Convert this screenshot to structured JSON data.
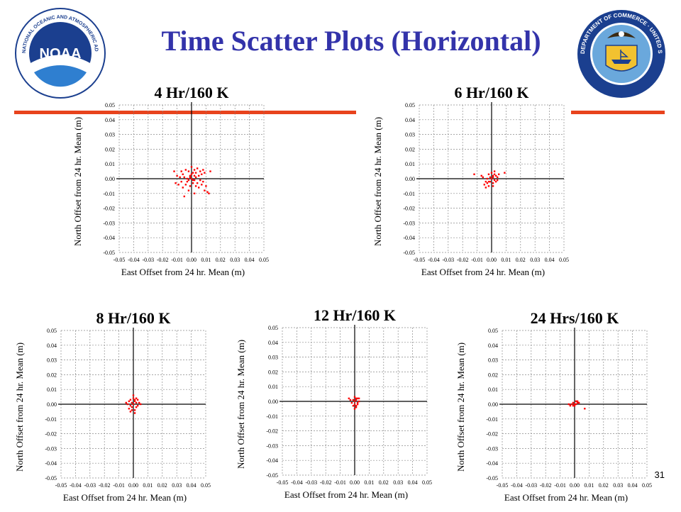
{
  "slide": {
    "title": "Time Scatter Plots (Horizontal)",
    "page_number": "31",
    "accent_color": "#e8431d",
    "title_color": "#3333aa"
  },
  "logos": {
    "left_icon": "noaa-logo-icon",
    "left_text": "NOAA",
    "left_ring_text": "NATIONAL OCEANIC AND ATMOSPHERIC ADMINISTRATION · U.S. DEPARTMENT OF COMMERCE",
    "right_icon": "department-of-commerce-seal-icon",
    "right_ring_text": "DEPARTMENT OF COMMERCE · UNITED STATES OF AMERICA"
  },
  "chart_data": [
    {
      "type": "scatter",
      "title": "4 Hr/160 K",
      "xlabel": "East Offset from 24 hr. Mean (m)",
      "ylabel": "North Offset from 24 hr. Mean (m)",
      "xlim": [
        -0.05,
        0.05
      ],
      "ylim": [
        -0.05,
        0.05
      ],
      "x_ticks": [
        "-0.05",
        "-0.04",
        "-0.03",
        "-0.02",
        "-0.01",
        "0.00",
        "0.01",
        "0.02",
        "0.03",
        "0.04",
        "0.05"
      ],
      "y_ticks": [
        "0.05",
        "0.04",
        "0.03",
        "0.02",
        "0.01",
        "0.00",
        "-0.01",
        "-0.02",
        "-0.03",
        "-0.04",
        "-0.05"
      ],
      "grid": true,
      "point_color": "#ff0000",
      "points": [
        [
          0.0,
          0.0
        ],
        [
          -0.001,
          0.002
        ],
        [
          0.002,
          -0.001
        ],
        [
          0.003,
          0.001
        ],
        [
          -0.003,
          -0.002
        ],
        [
          0.001,
          0.004
        ],
        [
          -0.002,
          0.005
        ],
        [
          0.004,
          -0.003
        ],
        [
          -0.005,
          0.001
        ],
        [
          0.005,
          0.002
        ],
        [
          -0.004,
          -0.004
        ],
        [
          0.006,
          -0.001
        ],
        [
          -0.006,
          0.003
        ],
        [
          0.002,
          0.006
        ],
        [
          -0.001,
          -0.005
        ],
        [
          0.003,
          -0.005
        ],
        [
          -0.007,
          -0.002
        ],
        [
          0.007,
          0.003
        ],
        [
          -0.008,
          0.001
        ],
        [
          0.008,
          -0.002
        ],
        [
          0.0,
          0.008
        ],
        [
          -0.002,
          -0.008
        ],
        [
          0.009,
          0.004
        ],
        [
          -0.009,
          -0.004
        ],
        [
          0.01,
          -0.005
        ],
        [
          -0.01,
          0.002
        ],
        [
          0.011,
          -0.009
        ],
        [
          0.012,
          -0.01
        ],
        [
          -0.011,
          -0.003
        ],
        [
          0.004,
          0.007
        ],
        [
          -0.004,
          0.006
        ],
        [
          0.001,
          -0.003
        ],
        [
          -0.003,
          0.0
        ],
        [
          0.005,
          -0.006
        ],
        [
          -0.006,
          -0.006
        ],
        [
          0.006,
          0.005
        ],
        [
          0.002,
          0.002
        ],
        [
          -0.001,
          0.001
        ],
        [
          0.001,
          -0.001
        ],
        [
          0.0,
          0.003
        ],
        [
          -0.002,
          -0.001
        ],
        [
          0.003,
          0.004
        ],
        [
          0.008,
          0.006
        ],
        [
          -0.007,
          0.005
        ],
        [
          0.013,
          0.005
        ],
        [
          -0.012,
          0.005
        ],
        [
          0.009,
          -0.008
        ],
        [
          -0.005,
          -0.012
        ],
        [
          0.002,
          -0.01
        ],
        [
          0.007,
          -0.004
        ]
      ]
    },
    {
      "type": "scatter",
      "title": "6 Hr/160 K",
      "xlabel": "East Offset from 24 hr. Mean (m)",
      "ylabel": "North Offset from 24 hr. Mean (m)",
      "xlim": [
        -0.05,
        0.05
      ],
      "ylim": [
        -0.05,
        0.05
      ],
      "x_ticks": [
        "-0.05",
        "-0.04",
        "-0.03",
        "-0.02",
        "-0.01",
        "0.00",
        "0.01",
        "0.02",
        "0.03",
        "0.04",
        "0.05"
      ],
      "y_ticks": [
        "0.05",
        "0.04",
        "0.03",
        "0.02",
        "0.01",
        "0.00",
        "-0.01",
        "-0.02",
        "-0.03",
        "-0.04",
        "-0.05"
      ],
      "grid": true,
      "point_color": "#ff0000",
      "points": [
        [
          0.0,
          0.0
        ],
        [
          0.001,
          0.002
        ],
        [
          -0.001,
          0.001
        ],
        [
          0.002,
          -0.001
        ],
        [
          0.003,
          0.002
        ],
        [
          -0.002,
          -0.002
        ],
        [
          0.001,
          -0.003
        ],
        [
          -0.003,
          -0.003
        ],
        [
          0.0,
          0.004
        ],
        [
          0.002,
          0.003
        ],
        [
          -0.004,
          -0.002
        ],
        [
          -0.005,
          -0.004
        ],
        [
          -0.002,
          -0.005
        ],
        [
          0.004,
          0.001
        ],
        [
          0.005,
          0.003
        ],
        [
          -0.001,
          -0.002
        ],
        [
          0.001,
          0.001
        ],
        [
          -0.006,
          0.001
        ],
        [
          -0.007,
          0.002
        ],
        [
          0.009,
          0.004
        ],
        [
          -0.012,
          0.003
        ],
        [
          0.003,
          -0.002
        ],
        [
          -0.003,
          0.0
        ],
        [
          0.002,
          0.005
        ],
        [
          -0.004,
          -0.006
        ],
        [
          0.001,
          -0.005
        ],
        [
          0.004,
          -0.001
        ],
        [
          -0.002,
          0.003
        ]
      ]
    },
    {
      "type": "scatter",
      "title": "8 Hr/160 K",
      "xlabel": "East Offset from 24 hr. Mean (m)",
      "ylabel": "North Offset from 24 hr. Mean (m)",
      "xlim": [
        -0.05,
        0.05
      ],
      "ylim": [
        -0.05,
        0.05
      ],
      "x_ticks": [
        "-0.05",
        "-0.04",
        "-0.03",
        "-0.02",
        "-0.01",
        "0.00",
        "0.01",
        "0.02",
        "0.03",
        "0.04",
        "0.05"
      ],
      "y_ticks": [
        "0.05",
        "0.04",
        "0.03",
        "0.02",
        "0.01",
        "0.00",
        "-0.01",
        "-0.02",
        "-0.03",
        "-0.04",
        "-0.05"
      ],
      "grid": true,
      "point_color": "#ff0000",
      "points": [
        [
          0.0,
          0.0
        ],
        [
          0.001,
          0.002
        ],
        [
          -0.001,
          0.001
        ],
        [
          0.002,
          -0.002
        ],
        [
          -0.002,
          -0.001
        ],
        [
          0.003,
          0.003
        ],
        [
          -0.003,
          0.002
        ],
        [
          0.001,
          -0.004
        ],
        [
          -0.001,
          -0.004
        ],
        [
          0.0,
          0.004
        ],
        [
          0.002,
          0.004
        ],
        [
          -0.002,
          0.003
        ],
        [
          0.003,
          -0.001
        ],
        [
          -0.004,
          0.0
        ],
        [
          0.004,
          0.001
        ],
        [
          -0.003,
          -0.003
        ],
        [
          0.001,
          -0.006
        ],
        [
          -0.002,
          -0.005
        ],
        [
          0.0,
          0.006
        ],
        [
          -0.005,
          0.001
        ],
        [
          0.005,
          0.0
        ],
        [
          0.002,
          0.001
        ],
        [
          -0.001,
          -0.002
        ],
        [
          0.001,
          0.003
        ]
      ]
    },
    {
      "type": "scatter",
      "title": "12 Hr/160 K",
      "xlabel": "East Offset from 24 hr. Mean (m)",
      "ylabel": "North Offset from 24 hr. Mean (m)",
      "xlim": [
        -0.05,
        0.05
      ],
      "ylim": [
        -0.05,
        0.05
      ],
      "x_ticks": [
        "-0.05",
        "-0.04",
        "-0.03",
        "-0.02",
        "-0.01",
        "0.00",
        "0.01",
        "0.02",
        "0.03",
        "0.04",
        "0.05"
      ],
      "y_ticks": [
        "0.05",
        "0.04",
        "0.03",
        "0.02",
        "0.01",
        "0.00",
        "-0.01",
        "-0.02",
        "-0.03",
        "-0.04",
        "-0.05"
      ],
      "grid": true,
      "point_color": "#ff0000",
      "points": [
        [
          0.0,
          0.0
        ],
        [
          0.001,
          0.001
        ],
        [
          -0.001,
          0.001
        ],
        [
          0.002,
          -0.001
        ],
        [
          -0.002,
          -0.001
        ],
        [
          0.001,
          0.002
        ],
        [
          0.0,
          -0.002
        ],
        [
          0.002,
          0.002
        ],
        [
          -0.001,
          -0.003
        ],
        [
          0.001,
          -0.003
        ],
        [
          0.003,
          0.0
        ],
        [
          -0.003,
          0.001
        ],
        [
          0.0,
          0.003
        ],
        [
          0.002,
          -0.002
        ],
        [
          -0.004,
          0.002
        ],
        [
          0.001,
          -0.004
        ],
        [
          0.0,
          -0.005
        ],
        [
          0.003,
          0.002
        ]
      ]
    },
    {
      "type": "scatter",
      "title": "24 Hrs/160 K",
      "xlabel": "East Offset from 24 hr. Mean (m)",
      "ylabel": "North Offset from 24 hr. Mean (m)",
      "xlim": [
        -0.05,
        0.05
      ],
      "ylim": [
        -0.05,
        0.05
      ],
      "x_ticks": [
        "-0.05",
        "-0.04",
        "-0.03",
        "-0.02",
        "-0.01",
        "0.00",
        "0.01",
        "0.02",
        "0.03",
        "0.04",
        "0.05"
      ],
      "y_ticks": [
        "0.05",
        "0.04",
        "0.03",
        "0.02",
        "0.01",
        "0.00",
        "-0.01",
        "-0.02",
        "-0.03",
        "-0.04",
        "-0.05"
      ],
      "grid": true,
      "point_color": "#ff0000",
      "points": [
        [
          0.0,
          0.0
        ],
        [
          -0.001,
          0.001
        ],
        [
          0.001,
          0.0
        ],
        [
          0.002,
          0.001
        ],
        [
          -0.002,
          0.0
        ],
        [
          0.003,
          0.001
        ],
        [
          -0.003,
          -0.001
        ],
        [
          0.001,
          0.002
        ],
        [
          0.0,
          -0.001
        ],
        [
          -0.001,
          -0.001
        ],
        [
          0.002,
          0.002
        ],
        [
          -0.004,
          0.0
        ],
        [
          0.007,
          -0.003
        ]
      ]
    }
  ]
}
